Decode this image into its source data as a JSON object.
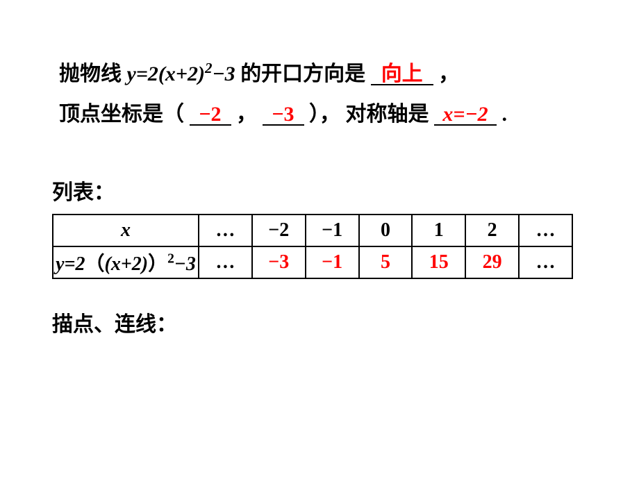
{
  "text": {
    "line1_a": "抛物线 ",
    "formula1": "y=2(x+2)",
    "formula1_sup": "2",
    "formula1_tail": "−3",
    "line1_b": "   的开口方向是",
    "line1_end": " ，",
    "line2_a": "顶点坐标是（",
    "line2_comma": " ，",
    "line2_b": "），  对称轴是",
    "line2_end": " .",
    "answer_direction": "向上",
    "answer_vx": "−2",
    "answer_vy": "−3",
    "answer_axis": "x=−2",
    "section_table": "列表：",
    "section_plot": "描点、连线："
  },
  "table": {
    "row1_label": "x",
    "row2_label_a": "y=2",
    "row2_label_b": "(x+2)",
    "row2_label_sup": "2",
    "row2_label_c": "−3",
    "ellipsis": "…",
    "xvals": [
      "−2",
      "−1",
      "0",
      "1",
      "2"
    ],
    "yvals": [
      "−3",
      "−1",
      "5",
      "15",
      "29"
    ]
  },
  "style": {
    "answer_color": "#ff0000",
    "text_color": "#000000",
    "bg": "#ffffff"
  }
}
